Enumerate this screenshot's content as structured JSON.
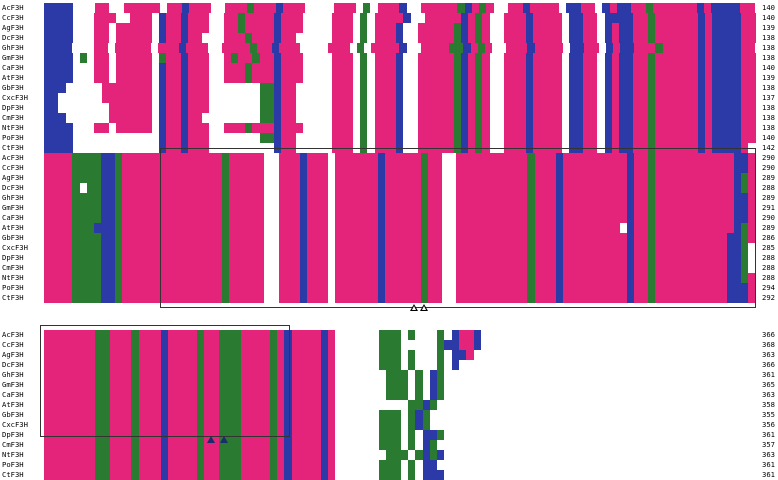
{
  "species": [
    "AcF3H",
    "CcF3H",
    "AgF3H",
    "DcF3H",
    "GhF3H",
    "GmF3H",
    "CaF3H",
    "AtF3H",
    "GbF3H",
    "CxcF3H",
    "DpF3H",
    "CmF3H",
    "NtF3H",
    "PoF3H",
    "CtF3H"
  ],
  "blocks": [
    {
      "end_numbers": [
        "140",
        "140",
        "139",
        "138",
        "138",
        "138",
        "140",
        "139",
        "138",
        "137",
        "138",
        "138",
        "138",
        "140",
        "142"
      ],
      "patterns": [
        "bbbbwwwppwwpppppwppbpppwwpppgpppbpppwwwwpppwgwpppbwwpppppgbpgpwwppbppppwbbppwbpbbppgppppppbpbbbbpp",
        "bbbbwwwpppwwpppwbppbpppwwppgppppbpppwwwwpppwgwppppbwwpppppbpgpwwpppbppppwbbppwbbbbppgppppppbpbbbbpp",
        "bbbbwwwppwpppppwbppbpppwwppgppppbpppwwwwpppwgwpppbwwpppppgbpgpwwpppbppppwbbppwbpbbppgppppppbpbbbbpp",
        "bbbbwwwppwpppppwbppbppwwwpppgpppbppwwwwwpppwgwpppbwwpppppgbpgpwwpppbppppwbbppwbpbbppgppppppbpbbbbpp",
        "bbbbwwwppwpppppwpppbpppwwppppgppbpppwwwwpppwgwppppbwwppppggbpgpwwpppbppppwbbppwbpbbpppgpppppbpbbbbpp",
        "bbbbwgwppwpppppwgppbpppwwpgppgppbpppwwwwpppwgwpppbwwpppppgbpgpwwpppbppppwbbppwbpbbppgppppppbpbbbbpp",
        "bbbbwwwppwpppppwbppbpppwwpppgpppbpppwwwwpppwgwpppbwwpppppgbpgpwwpppbppppwbbppwbpbbppgppppppbpbbbbpp",
        "bbbbwwwppwpppppwbppbpppwwpppgpppbpppwwwwpppwgwpppbwwpppppgbpgpwwpppbppppwbbppwbpbbppgppppppbpbbbbpp",
        "bbbwwwwwpppppppwbppbpppwwwwwwwggbppwwwwwpppwgwpppbwwpppppgbpgpwwpppbppppwbbppwbpbbppgppppppbpbbbbpp",
        "bbwwwwwwpppppppwbppbpppwwwwwwwggbppwwwwwpppwgwpppbwwpppppgbpgpwwpppbppppwbbppwbpbbppgppppppbpbbbbpp",
        "bbwwwwwwwppppppwbppbpppwwwwwwwggbppwwwwwpppwgwpppbwwpppppgbpgpwwpppbppppwbbppwbpbbppgppppppbpbbbbpp",
        "bbbwwwwwwppppppwbppbppwwwwwwwwggbppwwwwwpppwgwpppbwwpppppgbpgpwwpppbppppwbbppwbpbbppgppppppbpbbbbpp",
        "bbbbwwwppwpppppwbppbpppwwpppgpppbpppwwwwpppwgwpppbwwpppppgbpgpwwpppbppppwbbppwbpbbppgppppppbpbbbbpp",
        "bbbbwwwwwwwwwwwwbppbpppwwwwwwwggbppwwwwwpppwgwpppbwwpppppgbpgpwwpppbppppwbbppwbpbbppgppppppbpbbbbpp",
        "bbbbwwwwwwwwwwwwbppbpppwwwwwwwwwbppwwwwwpppwgwpppbwwpppppgbpgpwwpppbppppwbbppwbpbbppgppppppbpbbbbpw"
      ]
    },
    {
      "end_numbers": [
        "290",
        "290",
        "289",
        "288",
        "289",
        "291",
        "290",
        "289",
        "286",
        "285",
        "288",
        "288",
        "288",
        "294",
        "292"
      ],
      "patterns": [
        "ppppggggbbgppppppppppppppgpppppwwpppbpppwppppppbpppppgppwwppppppppppgpppbpppppppppbppgpppppppppppbbp",
        "ppppggggbbgppppppppppppppgpppppwwpppbpppwppppppbpppppgppwwppppppppppgpppbpppppppppbppgpppppppppppbbp",
        "ppppggggbbgppppppppppppppgpppppwwpppbpppwppppppbpppppgppwwppppppppppgpppbpppppppppbppgpppppppppppbgp",
        "ppppgwggbbgppppppppppppppgpppppwwpppbpppwppppppbpppppgppwwppppppppppgpppbpppppppppbppgpppppppppppbgp",
        "ppppggggbbgppppppppppppppgpppppwwpppbpppwppppppbpppppgppwwppppppppppgpppbpppppppppbppgpppppppppppbbp",
        "ppppggggbbgppppppppppppppgpppppwwpppbpppwppppppbpppppgppwwppppppppppgpppbpppppppppbppgpppppppppppbbp",
        "ppppggggbbgppppppppppppppgpppppwwpppbpppwppppppbpppppgppwwppppppppppgpppbpppppppppbppgpppppppppppbbp",
        "ppppgggbbbgppppppppppppppgpppppwwpppbpppwppppppbpppppgppwwppppppppppgpppbppppppppwbppgpppppppppppbgp",
        "ppppggggbbgppppppppppppppgpppppwwpppbpppwppppppbpppppgppwwppppppppppgpppbpppppppppbppgppppppppppbbgp",
        "ppppggggbbgppppppppppppppgpppppwwpppbpppwppppppbpppppgppwwppppppppppgpppbpppppppppbppgppppppppppbbgw",
        "ppppggggbbgppppppppppppppgpppppwwpppbpppwppppppbpppppgppwwppppppppppgpppbpppppppppbppgppppppppppbbgw",
        "ppppggggbbgppppppppppppppgpppppwwpppbpppwppppppbpppppgppwwppppppppppgpppbpppppppppbppgppppppppppbbgw",
        "ppppggggbbgppppppppppppppgpppppwwpppbpppwppppppbpppppgppwwppppppppppgpppbpppppppppbppgppppppppppbbgp",
        "ppppggggbbgppppppppppppppgpppppwwpppbpppwppppppbpppppgppwwppppppppppgpppbpppppppppbppgppppppppppbbbp",
        "ppppggggbbgppppppppppppppgpppppwwpppbpppwppppppbpppppgppwwppppppppppgpppbpppppppppbppgppppppppppbbbp"
      ]
    },
    {
      "end_numbers": [
        "366",
        "368",
        "363",
        "366",
        "361",
        "365",
        "363",
        "358",
        "355",
        "356",
        "361",
        "357",
        "363",
        "361",
        "361"
      ],
      "patterns": [
        "pppppppggpppgpppbppppgppgggppppgpbppppbpwwwwwwgggwgwwwgwbppb",
        "pppppppggpppgpppbppppgppgggppppgpbppppbpwwwwwwgggwwwwwgbbppb",
        "pppppppggpppgpppbppppgppgggppppgpbppppbpwwwwwwgggwgwwwgwbbpw",
        "pppppppggpppgpppbppppgppgggppppgpbppppbpwwwwwwgggwgwwwgwbwww",
        "pppppppggpppgpppbppppgppgggppppgpbppppbpwwwwwwwgggwgwbgwwwww",
        "pppppppggpppgpppbppppgppgggppppgpbppppbpwwwwwwwgggwgwbgwwwww",
        "pppppppggpppgpppbppppgppgggppppgpbppppbpwwwwwwwgggwgwbgwwwww",
        "pppppppggpppgpppbppppgppgggppppgpbppppbpwwwwwwwwwwggbgwwwwww",
        "pppppppggpppgpppbppppgppgggppppgpbppppbpwwwwwwgggwgbgwwwwwww",
        "pppppppggpppgpppbppppgppgggppppgpbppppbpwwwwwwgggwgbgwwwwwww",
        "pppppppggpppgpppbppppgppgggppppgpbppppbpwwwwwwgggwgwbbgwwwww",
        "pppppppggpppgpppbppppgppgggppppgpbppppbpwwwwwwgggwgwbgwwwwww",
        "pppppppggpppgpppbppppgppgggppppgpbppppbpwwwwwwwgggwgbgbwwwww",
        "pppppppggpppgpppbppppgppgggppppgpbppppbpwwwwwwgggwgwbbwwwwww",
        "pppppppggpppgpppbppppgppgggppppgpbppppbpwwwwwwgggwgwbbbwwwww"
      ]
    }
  ],
  "colors": {
    "identical": "#e4237a",
    "similar": "#2b3aa6",
    "weak": "#2a7a31",
    "none": "#ffffff"
  },
  "markers": {
    "open_triangles": 2,
    "filled_triangles": 2
  }
}
